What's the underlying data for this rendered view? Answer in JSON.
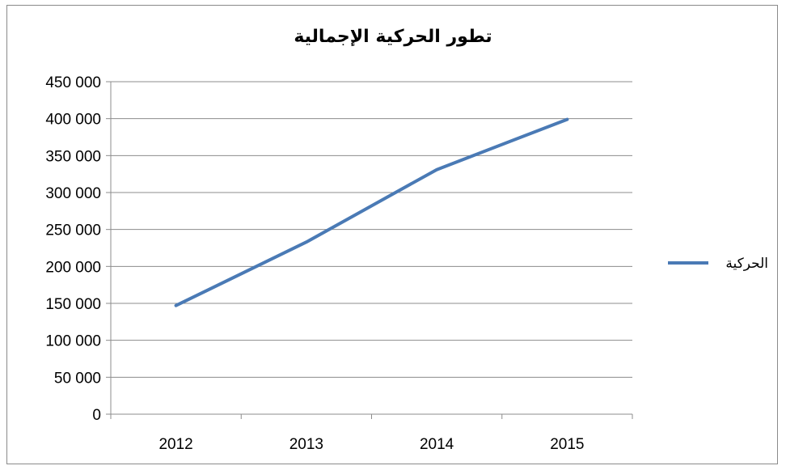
{
  "chart_data": {
    "type": "line",
    "title": "تطور الحركية  الإجمالية",
    "xlabel": "",
    "ylabel": "",
    "categories": [
      "2012",
      "2013",
      "2014",
      "2015"
    ],
    "series": [
      {
        "name": "الحركية",
        "values": [
          147000,
          233000,
          331000,
          399000
        ],
        "color": "#4a7ab5"
      }
    ],
    "ylim": [
      0,
      450000
    ],
    "yticks": [
      0,
      50000,
      100000,
      150000,
      200000,
      250000,
      300000,
      350000,
      400000,
      450000
    ],
    "ytick_labels": [
      "0",
      "50 000",
      "100 000",
      "150 000",
      "200 000",
      "250 000",
      "300 000",
      "350 000",
      "400 000",
      "450 000"
    ],
    "grid": "horizontal",
    "legend_position": "right"
  }
}
